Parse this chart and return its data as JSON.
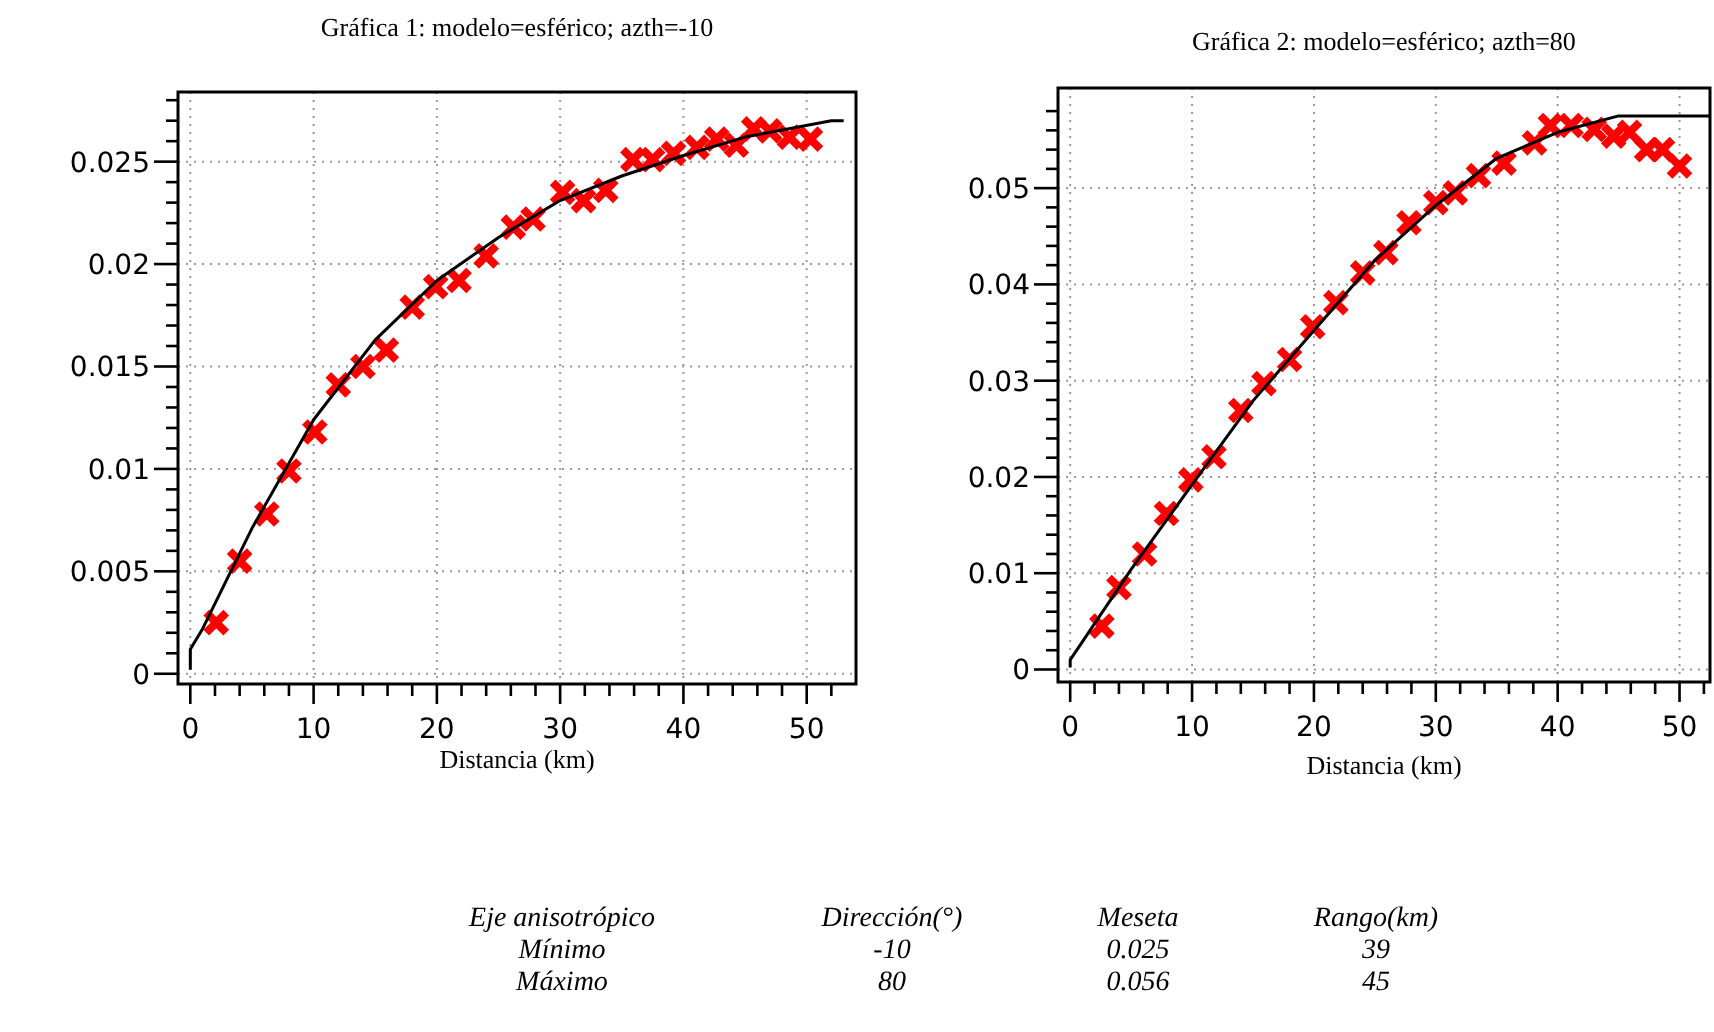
{
  "chart_data": [
    {
      "type": "scatter",
      "title": "Gráfica 1: modelo=esférico; azth=-10",
      "xlabel": "Distancia (km)",
      "xlim": [
        -1,
        54
      ],
      "ylim": [
        -0.0005,
        0.0284
      ],
      "grid": true,
      "xticks": [
        0,
        {
          "value": 2,
          "label": null
        },
        {
          "value": 4,
          "label": null
        },
        {
          "value": 6,
          "label": null
        },
        {
          "value": 8,
          "label": null
        },
        10,
        {
          "value": 12,
          "label": null
        },
        {
          "value": 14,
          "label": null
        },
        {
          "value": 16,
          "label": null
        },
        {
          "value": 18,
          "label": null
        },
        20,
        {
          "value": 22,
          "label": null
        },
        {
          "value": 24,
          "label": null
        },
        {
          "value": 26,
          "label": null
        },
        {
          "value": 28,
          "label": null
        },
        30,
        {
          "value": 32,
          "label": null
        },
        {
          "value": 34,
          "label": null
        },
        {
          "value": 36,
          "label": null
        },
        {
          "value": 38,
          "label": null
        },
        40,
        {
          "value": 42,
          "label": null
        },
        {
          "value": 44,
          "label": null
        },
        {
          "value": 46,
          "label": null
        },
        {
          "value": 48,
          "label": null
        },
        50,
        {
          "value": 52,
          "label": null
        }
      ],
      "yticks": [
        0,
        {
          "value": 0.001,
          "label": null
        },
        {
          "value": 0.002,
          "label": null
        },
        {
          "value": 0.003,
          "label": null
        },
        {
          "value": 0.004,
          "label": null
        },
        0.005,
        {
          "value": 0.006,
          "label": null
        },
        {
          "value": 0.007,
          "label": null
        },
        {
          "value": 0.008,
          "label": null
        },
        {
          "value": 0.009,
          "label": null
        },
        0.01,
        {
          "value": 0.011,
          "label": null
        },
        {
          "value": 0.012,
          "label": null
        },
        {
          "value": 0.013,
          "label": null
        },
        {
          "value": 0.014,
          "label": null
        },
        0.015,
        {
          "value": 0.016,
          "label": null
        },
        {
          "value": 0.017,
          "label": null
        },
        {
          "value": 0.018,
          "label": null
        },
        {
          "value": 0.019,
          "label": null
        },
        0.02,
        {
          "value": 0.021,
          "label": null
        },
        {
          "value": 0.022,
          "label": null
        },
        {
          "value": 0.023,
          "label": null
        },
        {
          "value": 0.024,
          "label": null
        },
        0.025,
        {
          "value": 0.026,
          "label": null
        },
        {
          "value": 0.027,
          "label": null
        },
        {
          "value": 0.028,
          "label": null
        }
      ],
      "series": [
        {
          "type": "scatter",
          "marker": "cross",
          "color": "#ff0000",
          "x": [
            2.1,
            4,
            6.2,
            8,
            10.1,
            12,
            14,
            15.9,
            18,
            19.9,
            21.8,
            24,
            26.2,
            27.8,
            30.2,
            31.9,
            33.7,
            35.9,
            37.5,
            39.2,
            41.1,
            42.7,
            44.3,
            45.7,
            47,
            48.6,
            50.3
          ],
          "values": [
            0.0025,
            0.0055,
            0.0078,
            0.0099,
            0.0118,
            0.0141,
            0.015,
            0.0158,
            0.0179,
            0.0189,
            0.0192,
            0.0204,
            0.0218,
            0.0222,
            0.0235,
            0.0231,
            0.0236,
            0.0251,
            0.0251,
            0.0254,
            0.0257,
            0.0261,
            0.0258,
            0.0266,
            0.0265,
            0.0262,
            0.0261
          ]
        },
        {
          "type": "line",
          "color": "#000000",
          "x": [
            0,
            0,
            1,
            5,
            10,
            15,
            20,
            25,
            30,
            35,
            40,
            45,
            52,
            53
          ],
          "values": [
            0.0002,
            0.0012,
            0.0022,
            0.0071,
            0.0124,
            0.0163,
            0.0192,
            0.0213,
            0.0231,
            0.0243,
            0.0253,
            0.0262,
            0.027,
            0.027
          ]
        }
      ]
    },
    {
      "type": "scatter",
      "title": "Gráfica 2: modelo=esférico; azth=80",
      "xlabel": "Distancia (km)",
      "xlim": [
        -1,
        52.5
      ],
      "ylim": [
        -0.0013,
        0.0604
      ],
      "grid": true,
      "xticks": [
        0,
        {
          "value": 2,
          "label": null
        },
        {
          "value": 4,
          "label": null
        },
        {
          "value": 6,
          "label": null
        },
        {
          "value": 8,
          "label": null
        },
        10,
        {
          "value": 12,
          "label": null
        },
        {
          "value": 14,
          "label": null
        },
        {
          "value": 16,
          "label": null
        },
        {
          "value": 18,
          "label": null
        },
        20,
        {
          "value": 22,
          "label": null
        },
        {
          "value": 24,
          "label": null
        },
        {
          "value": 26,
          "label": null
        },
        {
          "value": 28,
          "label": null
        },
        30,
        {
          "value": 32,
          "label": null
        },
        {
          "value": 34,
          "label": null
        },
        {
          "value": 36,
          "label": null
        },
        {
          "value": 38,
          "label": null
        },
        40,
        {
          "value": 42,
          "label": null
        },
        {
          "value": 44,
          "label": null
        },
        {
          "value": 46,
          "label": null
        },
        {
          "value": 48,
          "label": null
        },
        50,
        {
          "value": 52,
          "label": null
        }
      ],
      "yticks": [
        0,
        {
          "value": 0.002,
          "label": null
        },
        {
          "value": 0.004,
          "label": null
        },
        {
          "value": 0.006,
          "label": null
        },
        {
          "value": 0.008,
          "label": null
        },
        0.01,
        {
          "value": 0.012,
          "label": null
        },
        {
          "value": 0.014,
          "label": null
        },
        {
          "value": 0.016,
          "label": null
        },
        {
          "value": 0.018,
          "label": null
        },
        0.02,
        {
          "value": 0.022,
          "label": null
        },
        {
          "value": 0.024,
          "label": null
        },
        {
          "value": 0.026,
          "label": null
        },
        {
          "value": 0.028,
          "label": null
        },
        0.03,
        {
          "value": 0.032,
          "label": null
        },
        {
          "value": 0.034,
          "label": null
        },
        {
          "value": 0.036,
          "label": null
        },
        {
          "value": 0.038,
          "label": null
        },
        0.04,
        {
          "value": 0.042,
          "label": null
        },
        {
          "value": 0.044,
          "label": null
        },
        {
          "value": 0.046,
          "label": null
        },
        {
          "value": 0.048,
          "label": null
        },
        0.05,
        {
          "value": 0.052,
          "label": null
        },
        {
          "value": 0.054,
          "label": null
        },
        {
          "value": 0.056,
          "label": null
        },
        {
          "value": 0.058,
          "label": null
        }
      ],
      "series": [
        {
          "type": "scatter",
          "marker": "cross",
          "color": "#ff0000",
          "x": [
            2.6,
            4,
            6.1,
            7.9,
            9.9,
            11.8,
            14,
            15.9,
            18,
            19.9,
            21.8,
            24,
            25.9,
            27.8,
            30,
            31.6,
            33.5,
            35.6,
            38.1,
            39.4,
            41.1,
            43,
            44.6,
            45.9,
            47.3,
            48.6,
            50
          ],
          "values": [
            0.0045,
            0.0085,
            0.012,
            0.0162,
            0.0197,
            0.0221,
            0.0269,
            0.0297,
            0.0322,
            0.0356,
            0.0381,
            0.0412,
            0.0433,
            0.0464,
            0.0485,
            0.0495,
            0.0513,
            0.0526,
            0.0547,
            0.0565,
            0.0565,
            0.0561,
            0.0554,
            0.0558,
            0.054,
            0.054,
            0.0523
          ]
        },
        {
          "type": "line",
          "color": "#000000",
          "x": [
            0,
            0,
            5,
            10,
            15,
            20,
            25,
            30,
            35,
            40,
            45,
            52.5
          ],
          "values": [
            0.0002,
            0.001,
            0.0104,
            0.0192,
            0.0279,
            0.0352,
            0.0425,
            0.0482,
            0.0531,
            0.0558,
            0.0575,
            0.0575
          ]
        }
      ]
    },
    {
      "type": "other",
      "annotations": [
        "Eje anisotrópico",
        "Dirección(°)",
        "Meseta",
        "Rango(km)",
        "Mínimo",
        "-10",
        "0.025",
        "39",
        "Máximo",
        "80",
        "0.056",
        "45"
      ]
    }
  ]
}
